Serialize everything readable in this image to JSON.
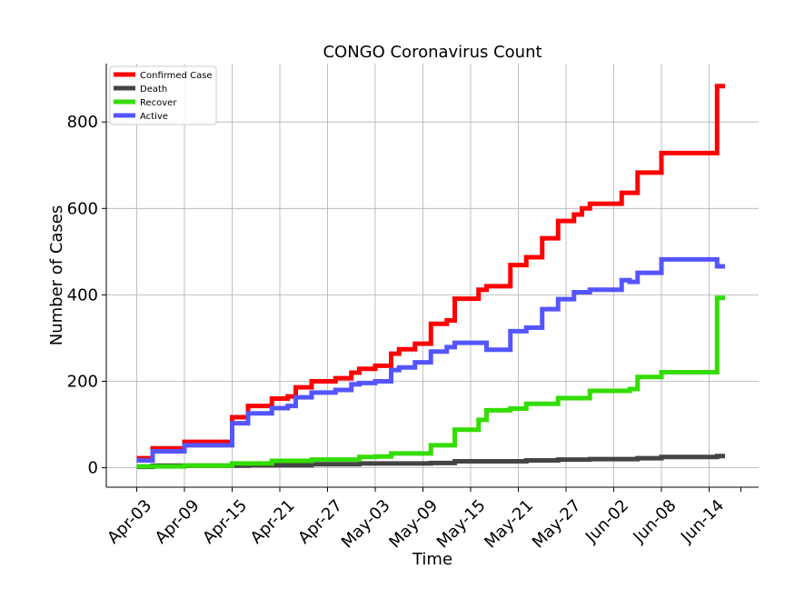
{
  "chart_data": {
    "type": "line",
    "title": "CONGO Coronavirus Count",
    "xlabel": "Time",
    "ylabel": "Number of Cases",
    "x_start": "2020-04-03",
    "x_end": "2020-06-16",
    "x_ticks": [
      "Apr-03",
      "Apr-09",
      "Apr-15",
      "Apr-21",
      "Apr-27",
      "May-03",
      "May-09",
      "May-15",
      "May-21",
      "May-27",
      "Jun-02",
      "Jun-08",
      "Jun-14"
    ],
    "x_tick_dates": [
      "2020-04-03",
      "2020-04-09",
      "2020-04-15",
      "2020-04-21",
      "2020-04-27",
      "2020-05-03",
      "2020-05-09",
      "2020-05-15",
      "2020-05-21",
      "2020-05-27",
      "2020-06-02",
      "2020-06-08",
      "2020-06-14"
    ],
    "ylim": [
      -45,
      935
    ],
    "y_ticks": [
      0,
      200,
      400,
      600,
      800
    ],
    "grid": true,
    "legend_position": "top-left",
    "series": [
      {
        "name": "Confirmed Case",
        "color": "#ff0000",
        "points": [
          [
            "2020-04-03",
            22
          ],
          [
            "2020-04-05",
            45
          ],
          [
            "2020-04-09",
            60
          ],
          [
            "2020-04-15",
            117
          ],
          [
            "2020-04-17",
            143
          ],
          [
            "2020-04-20",
            160
          ],
          [
            "2020-04-22",
            165
          ],
          [
            "2020-04-23",
            186
          ],
          [
            "2020-04-25",
            200
          ],
          [
            "2020-04-28",
            207
          ],
          [
            "2020-04-30",
            220
          ],
          [
            "2020-05-01",
            229
          ],
          [
            "2020-05-03",
            236
          ],
          [
            "2020-05-05",
            264
          ],
          [
            "2020-05-06",
            274
          ],
          [
            "2020-05-08",
            287
          ],
          [
            "2020-05-10",
            333
          ],
          [
            "2020-05-12",
            341
          ],
          [
            "2020-05-13",
            391
          ],
          [
            "2020-05-16",
            412
          ],
          [
            "2020-05-17",
            420
          ],
          [
            "2020-05-20",
            469
          ],
          [
            "2020-05-22",
            487
          ],
          [
            "2020-05-24",
            531
          ],
          [
            "2020-05-26",
            571
          ],
          [
            "2020-05-28",
            586
          ],
          [
            "2020-05-29",
            600
          ],
          [
            "2020-05-30",
            611
          ],
          [
            "2020-06-03",
            636
          ],
          [
            "2020-06-05",
            683
          ],
          [
            "2020-06-08",
            728
          ],
          [
            "2020-06-13",
            728
          ],
          [
            "2020-06-14",
            728
          ],
          [
            "2020-06-15",
            883
          ],
          [
            "2020-06-16",
            883
          ]
        ]
      },
      {
        "name": "Death",
        "color": "#444444",
        "points": [
          [
            "2020-04-03",
            2
          ],
          [
            "2020-04-05",
            5
          ],
          [
            "2020-04-15",
            5
          ],
          [
            "2020-04-17",
            6
          ],
          [
            "2020-04-25",
            8
          ],
          [
            "2020-05-01",
            10
          ],
          [
            "2020-05-10",
            11
          ],
          [
            "2020-05-13",
            15
          ],
          [
            "2020-05-20",
            15
          ],
          [
            "2020-05-22",
            17
          ],
          [
            "2020-05-26",
            19
          ],
          [
            "2020-05-30",
            20
          ],
          [
            "2020-06-05",
            22
          ],
          [
            "2020-06-08",
            25
          ],
          [
            "2020-06-15",
            27
          ],
          [
            "2020-06-16",
            27
          ]
        ]
      },
      {
        "name": "Recover",
        "color": "#33dd00",
        "points": [
          [
            "2020-04-03",
            3
          ],
          [
            "2020-04-09",
            5
          ],
          [
            "2020-04-15",
            10
          ],
          [
            "2020-04-20",
            16
          ],
          [
            "2020-04-25",
            19
          ],
          [
            "2020-05-01",
            25
          ],
          [
            "2020-05-03",
            26
          ],
          [
            "2020-05-05",
            33
          ],
          [
            "2020-05-09",
            33
          ],
          [
            "2020-05-10",
            52
          ],
          [
            "2020-05-13",
            88
          ],
          [
            "2020-05-16",
            111
          ],
          [
            "2020-05-17",
            133
          ],
          [
            "2020-05-20",
            137
          ],
          [
            "2020-05-22",
            148
          ],
          [
            "2020-05-26",
            161
          ],
          [
            "2020-05-29",
            161
          ],
          [
            "2020-05-30",
            178
          ],
          [
            "2020-06-03",
            178
          ],
          [
            "2020-06-04",
            182
          ],
          [
            "2020-06-05",
            210
          ],
          [
            "2020-06-08",
            221
          ],
          [
            "2020-06-14",
            221
          ],
          [
            "2020-06-15",
            393
          ],
          [
            "2020-06-16",
            393
          ]
        ]
      },
      {
        "name": "Active",
        "color": "#5555ff",
        "points": [
          [
            "2020-04-03",
            17
          ],
          [
            "2020-04-05",
            38
          ],
          [
            "2020-04-09",
            52
          ],
          [
            "2020-04-15",
            103
          ],
          [
            "2020-04-17",
            126
          ],
          [
            "2020-04-20",
            138
          ],
          [
            "2020-04-22",
            143
          ],
          [
            "2020-04-23",
            163
          ],
          [
            "2020-04-25",
            174
          ],
          [
            "2020-04-28",
            180
          ],
          [
            "2020-04-30",
            193
          ],
          [
            "2020-05-01",
            196
          ],
          [
            "2020-05-03",
            200
          ],
          [
            "2020-05-05",
            226
          ],
          [
            "2020-05-06",
            232
          ],
          [
            "2020-05-08",
            244
          ],
          [
            "2020-05-10",
            269
          ],
          [
            "2020-05-12",
            279
          ],
          [
            "2020-05-13",
            289
          ],
          [
            "2020-05-16",
            289
          ],
          [
            "2020-05-17",
            273
          ],
          [
            "2020-05-20",
            316
          ],
          [
            "2020-05-22",
            324
          ],
          [
            "2020-05-24",
            367
          ],
          [
            "2020-05-26",
            390
          ],
          [
            "2020-05-28",
            406
          ],
          [
            "2020-05-30",
            412
          ],
          [
            "2020-06-03",
            434
          ],
          [
            "2020-06-04",
            430
          ],
          [
            "2020-06-05",
            451
          ],
          [
            "2020-06-08",
            482
          ],
          [
            "2020-06-14",
            482
          ],
          [
            "2020-06-15",
            466
          ],
          [
            "2020-06-16",
            466
          ]
        ]
      }
    ]
  }
}
